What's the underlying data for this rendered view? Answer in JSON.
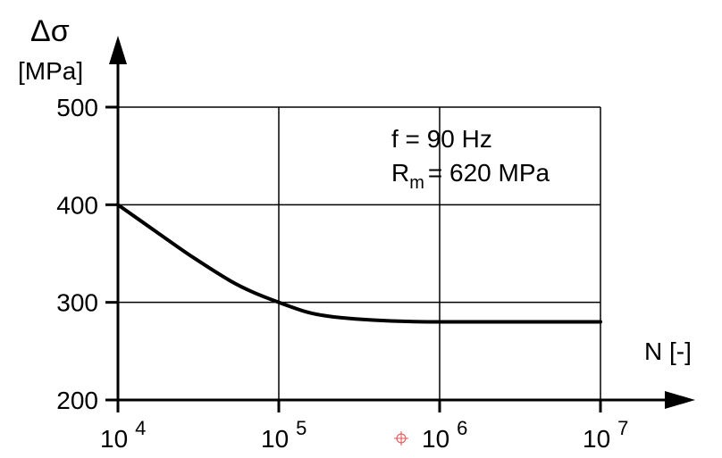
{
  "chart_data": {
    "type": "line",
    "x_scale": "log",
    "xlim": [
      10000,
      10000000
    ],
    "ylim": [
      200,
      500
    ],
    "grid": true,
    "ylabel": {
      "symbol": "Δσ",
      "unit": "[MPa]"
    },
    "xlabel": "N [-]",
    "y_ticks": [
      "200",
      "300",
      "400",
      "500"
    ],
    "y_tick_values": [
      200,
      300,
      400,
      500
    ],
    "x_ticks": [
      {
        "base": "10",
        "exp": "4",
        "value": 10000
      },
      {
        "base": "10",
        "exp": "5",
        "value": 100000
      },
      {
        "base": "10",
        "exp": "6",
        "value": 1000000
      },
      {
        "base": "10",
        "exp": "7",
        "value": 10000000
      }
    ],
    "annotations": {
      "freq": "f = 90 Hz",
      "rm_main": "R",
      "rm_sub": "m",
      "rm_rest": "= 620 MPa"
    },
    "series": [
      {
        "x": [
          10000,
          20000,
          30000,
          50000,
          70000,
          100000,
          150000,
          200000,
          300000,
          500000,
          1000000,
          3000000,
          10000000
        ],
        "y": [
          400,
          365,
          345,
          322,
          310,
          300,
          290,
          286,
          283,
          281,
          280,
          280,
          280
        ]
      }
    ]
  }
}
